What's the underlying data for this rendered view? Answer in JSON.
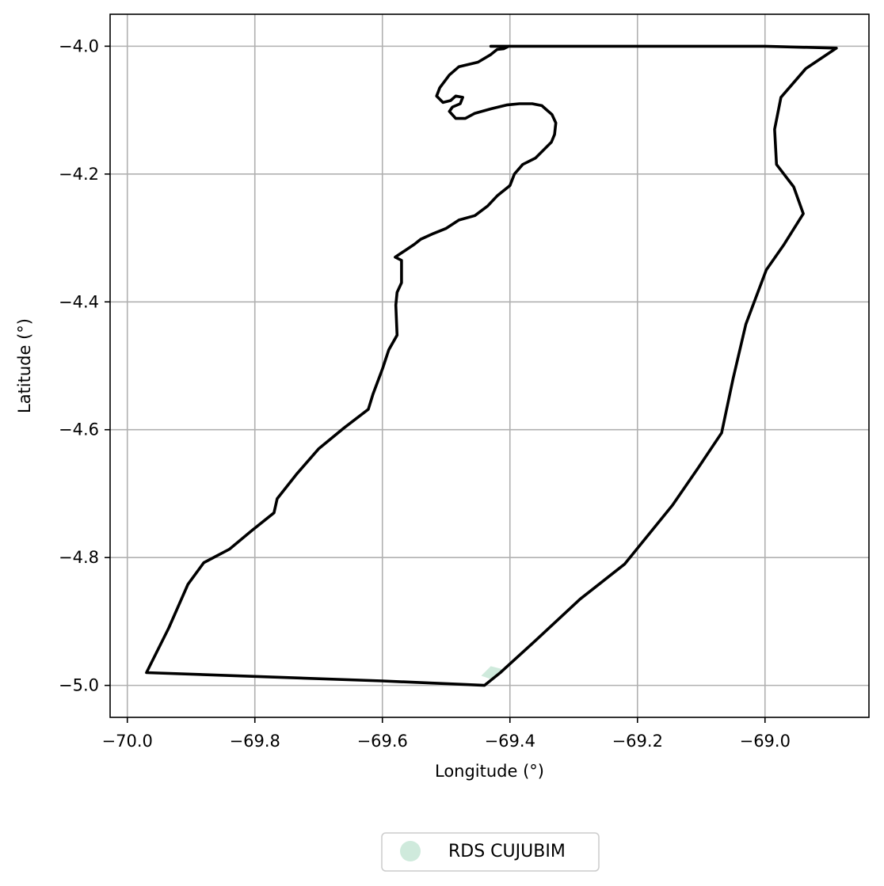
{
  "chart_data": {
    "type": "map",
    "xlabel": "Longitude (°)",
    "ylabel": "Latitude (°)",
    "xlim": [
      -70.027,
      -68.837
    ],
    "ylim": [
      -5.05,
      -3.95
    ],
    "xticks": [
      -70.0,
      -69.8,
      -69.6,
      -69.4,
      -69.2,
      -69.0
    ],
    "xtick_labels": [
      "−70.0",
      "−69.8",
      "−69.6",
      "−69.4",
      "−69.2",
      "−69.0"
    ],
    "yticks": [
      -4.0,
      -4.2,
      -4.4,
      -4.6,
      -4.8,
      -5.0
    ],
    "ytick_labels": [
      "−4.0",
      "−4.2",
      "−4.4",
      "−4.6",
      "−4.8",
      "−5.0"
    ],
    "grid": true,
    "legend": {
      "placement": "bottom-center",
      "entries": [
        {
          "label": "RDS CUJUBIM",
          "color": "#cfeadc"
        }
      ]
    },
    "boundary": {
      "color": "#000000",
      "points": [
        [
          -69.43,
          -4.0
        ],
        [
          -69.41,
          -4.0
        ],
        [
          -69.2,
          -4.0
        ],
        [
          -69.0,
          -4.0
        ],
        [
          -68.888,
          -4.003
        ],
        [
          -68.936,
          -4.035
        ],
        [
          -68.975,
          -4.08
        ],
        [
          -68.985,
          -4.13
        ],
        [
          -68.982,
          -4.185
        ],
        [
          -68.955,
          -4.22
        ],
        [
          -68.94,
          -4.262
        ],
        [
          -68.97,
          -4.31
        ],
        [
          -68.998,
          -4.35
        ],
        [
          -69.015,
          -4.395
        ],
        [
          -69.03,
          -4.435
        ],
        [
          -69.05,
          -4.52
        ],
        [
          -69.068,
          -4.605
        ],
        [
          -69.105,
          -4.66
        ],
        [
          -69.145,
          -4.718
        ],
        [
          -69.22,
          -4.81
        ],
        [
          -69.29,
          -4.865
        ],
        [
          -69.36,
          -4.93
        ],
        [
          -69.415,
          -4.98
        ],
        [
          -69.44,
          -5.0
        ],
        [
          -69.6,
          -4.993
        ],
        [
          -69.97,
          -4.98
        ],
        [
          -69.935,
          -4.91
        ],
        [
          -69.905,
          -4.842
        ],
        [
          -69.88,
          -4.808
        ],
        [
          -69.84,
          -4.787
        ],
        [
          -69.805,
          -4.758
        ],
        [
          -69.77,
          -4.73
        ],
        [
          -69.765,
          -4.708
        ],
        [
          -69.735,
          -4.67
        ],
        [
          -69.7,
          -4.63
        ],
        [
          -69.66,
          -4.597
        ],
        [
          -69.622,
          -4.568
        ],
        [
          -69.615,
          -4.545
        ],
        [
          -69.6,
          -4.505
        ],
        [
          -69.59,
          -4.475
        ],
        [
          -69.577,
          -4.452
        ],
        [
          -69.579,
          -4.405
        ],
        [
          -69.577,
          -4.385
        ],
        [
          -69.57,
          -4.37
        ],
        [
          -69.57,
          -4.335
        ],
        [
          -69.58,
          -4.33
        ],
        [
          -69.565,
          -4.32
        ],
        [
          -69.55,
          -4.31
        ],
        [
          -69.54,
          -4.302
        ],
        [
          -69.52,
          -4.293
        ],
        [
          -69.5,
          -4.285
        ],
        [
          -69.48,
          -4.272
        ],
        [
          -69.455,
          -4.265
        ],
        [
          -69.435,
          -4.25
        ],
        [
          -69.42,
          -4.234
        ],
        [
          -69.4,
          -4.218
        ],
        [
          -69.393,
          -4.2
        ],
        [
          -69.38,
          -4.185
        ],
        [
          -69.36,
          -4.175
        ],
        [
          -69.35,
          -4.165
        ],
        [
          -69.335,
          -4.15
        ],
        [
          -69.33,
          -4.138
        ],
        [
          -69.328,
          -4.12
        ],
        [
          -69.334,
          -4.107
        ],
        [
          -69.342,
          -4.1
        ],
        [
          -69.35,
          -4.093
        ],
        [
          -69.365,
          -4.09
        ],
        [
          -69.385,
          -4.09
        ],
        [
          -69.405,
          -4.092
        ],
        [
          -69.43,
          -4.098
        ],
        [
          -69.455,
          -4.105
        ],
        [
          -69.47,
          -4.113
        ],
        [
          -69.485,
          -4.113
        ],
        [
          -69.495,
          -4.102
        ],
        [
          -69.49,
          -4.095
        ],
        [
          -69.478,
          -4.09
        ],
        [
          -69.474,
          -4.08
        ],
        [
          -69.485,
          -4.078
        ],
        [
          -69.493,
          -4.085
        ],
        [
          -69.505,
          -4.088
        ],
        [
          -69.515,
          -4.078
        ],
        [
          -69.51,
          -4.065
        ],
        [
          -69.495,
          -4.045
        ],
        [
          -69.48,
          -4.032
        ],
        [
          -69.45,
          -4.025
        ],
        [
          -69.43,
          -4.013
        ],
        [
          -69.42,
          -4.005
        ],
        [
          -69.41,
          -4.004
        ],
        [
          -69.402,
          -4.0
        ]
      ]
    },
    "polygon": {
      "color": "#cfeadc",
      "points": [
        [
          -69.43,
          -4.97
        ],
        [
          -69.41,
          -4.975
        ],
        [
          -69.43,
          -4.99
        ],
        [
          -69.445,
          -4.985
        ]
      ]
    }
  }
}
